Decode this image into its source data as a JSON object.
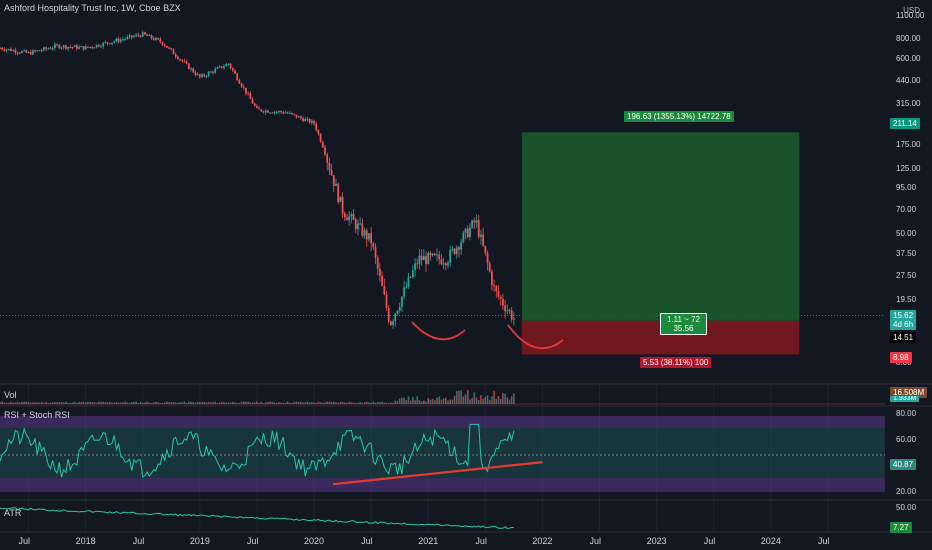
{
  "header": {
    "title": "Ashford Hospitality Trust Inc, 1W, Cboe BZX",
    "currency": "USD"
  },
  "price_axis": {
    "ticks": [
      "1100.00",
      "800.00",
      "600.00",
      "440.00",
      "315.00",
      "235.00",
      "175.00",
      "125.00",
      "95.00",
      "70.00",
      "50.00",
      "37.50",
      "27.50",
      "19.50",
      "14.00",
      "11.50",
      "8.00"
    ],
    "price_tag": "15.62",
    "countdown": "4d 6h",
    "cross_tag": "14.51",
    "target_tag": "211.14",
    "stop_tag": "8.98",
    "colors": {
      "price": "#26a69a",
      "cross": "#131722",
      "target": "#089981",
      "stop": "#f23645"
    }
  },
  "time_axis": [
    "Jul",
    "2018",
    "Jul",
    "2019",
    "Jul",
    "2020",
    "Jul",
    "2021",
    "Jul",
    "2022",
    "Jul",
    "2023",
    "Jul",
    "2024",
    "Jul"
  ],
  "position_tool": {
    "target_label": "196.63 (1355.13%) 14722.78",
    "stop_label": "5.53 (38.11%) 100",
    "rr_line1": "1.11 ~ 72",
    "rr_line2": "35.56",
    "colors": {
      "profit": "#1a5e2a",
      "loss": "#7a1820",
      "profit_label": "#1b8a3a",
      "loss_label": "#b2182b"
    }
  },
  "panes": {
    "vol": {
      "label": "Vol",
      "value": "16.508M",
      "value2": "1.933M"
    },
    "rsi": {
      "label": "RSI + Stoch RSI",
      "ticks": [
        "80.00",
        "60.00",
        "20.00"
      ],
      "value": "40.87"
    },
    "atr": {
      "label": "ATR",
      "ticks": [
        "50.00"
      ],
      "value": "7.27"
    }
  },
  "chart_data": {
    "type": "candlestick",
    "title": "Ashford Hospitality Trust Inc, 1W, Cboe BZX",
    "y_scale": "log",
    "ylim": [
      7,
      1200
    ],
    "x_range": [
      "2017-04",
      "2024-12"
    ],
    "approx_close_path": [
      {
        "x": "2017-04",
        "y": 700
      },
      {
        "x": "2017-07",
        "y": 650
      },
      {
        "x": "2017-10",
        "y": 720
      },
      {
        "x": "2018-01",
        "y": 700
      },
      {
        "x": "2018-07",
        "y": 850
      },
      {
        "x": "2018-09",
        "y": 760
      },
      {
        "x": "2019-01",
        "y": 460
      },
      {
        "x": "2019-04",
        "y": 560
      },
      {
        "x": "2019-07",
        "y": 290
      },
      {
        "x": "2019-10",
        "y": 280
      },
      {
        "x": "2020-01",
        "y": 240
      },
      {
        "x": "2020-02",
        "y": 170
      },
      {
        "x": "2020-04",
        "y": 70
      },
      {
        "x": "2020-07",
        "y": 45
      },
      {
        "x": "2020-09",
        "y": 14
      },
      {
        "x": "2020-12",
        "y": 35
      },
      {
        "x": "2021-03",
        "y": 35
      },
      {
        "x": "2021-06",
        "y": 60
      },
      {
        "x": "2021-08",
        "y": 22
      },
      {
        "x": "2021-10",
        "y": 15
      }
    ],
    "position": {
      "entry": 14.51,
      "target": 211.14,
      "stop": 8.98
    },
    "rsi_trendline": [
      {
        "x": "2020-03",
        "y": 26
      },
      {
        "x": "2022-01",
        "y": 43
      }
    ]
  }
}
